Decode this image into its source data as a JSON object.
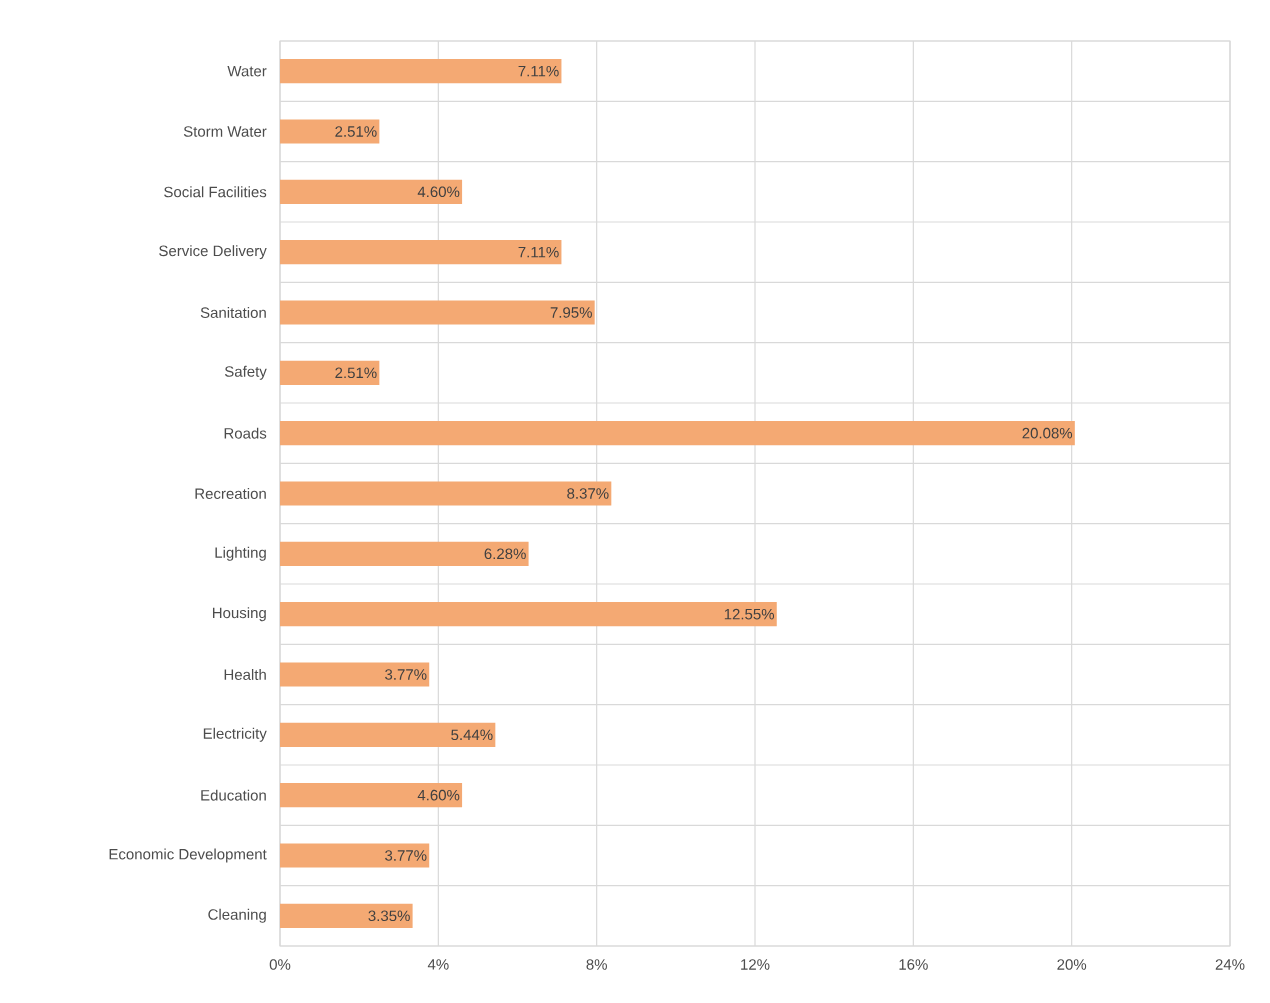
{
  "chart_data": {
    "type": "bar",
    "orientation": "horizontal",
    "categories": [
      "Water",
      "Storm Water",
      "Social Facilities",
      "Service Delivery",
      "Sanitation",
      "Safety",
      "Roads",
      "Recreation",
      "Lighting",
      "Housing",
      "Health",
      "Electricity",
      "Education",
      "Economic Development",
      "Cleaning"
    ],
    "values": [
      7.11,
      2.51,
      4.6,
      7.11,
      7.95,
      2.51,
      20.08,
      8.37,
      6.28,
      12.55,
      3.77,
      5.44,
      4.6,
      3.77,
      3.35
    ],
    "value_labels": [
      "7.11%",
      "2.51%",
      "4.60%",
      "7.11%",
      "7.95%",
      "2.51%",
      "20.08%",
      "8.37%",
      "6.28%",
      "12.55%",
      "3.77%",
      "5.44%",
      "4.60%",
      "3.77%",
      "3.35%"
    ],
    "color": "#f4a973",
    "xlim": [
      0,
      24
    ],
    "xticks": [
      {
        "value": 0,
        "label": "0%"
      },
      {
        "value": 4,
        "label": "4%"
      },
      {
        "value": 8,
        "label": "8%"
      },
      {
        "value": 12,
        "label": "12%"
      },
      {
        "value": 16,
        "label": "16%"
      },
      {
        "value": 20,
        "label": "20%"
      },
      {
        "value": 24,
        "label": "24%"
      }
    ],
    "grid": true
  }
}
